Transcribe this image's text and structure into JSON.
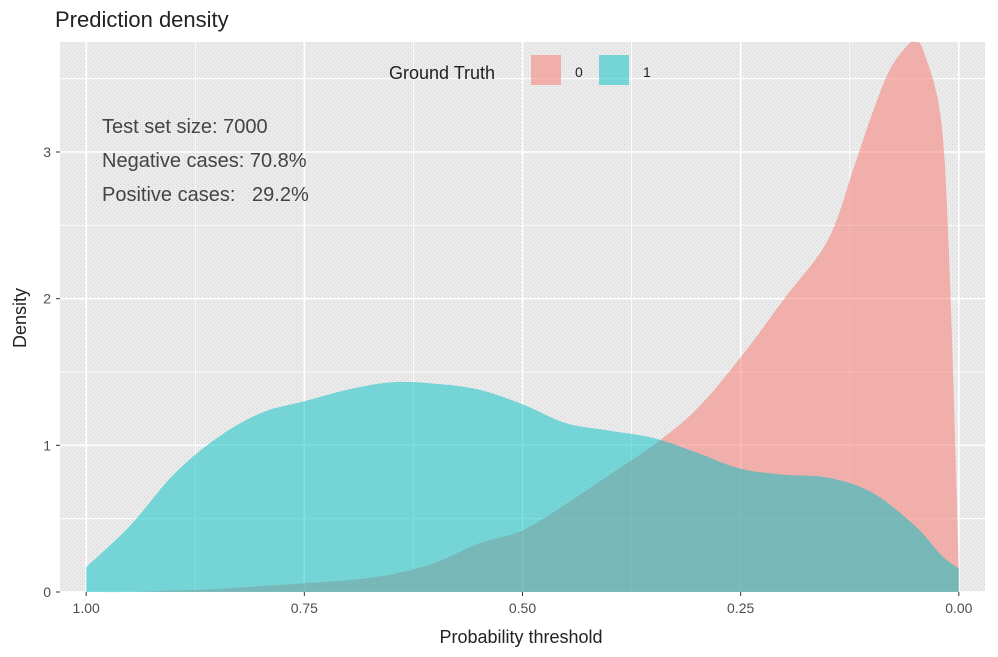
{
  "chart_data": {
    "type": "area",
    "title": "Prediction density",
    "xlabel": "Probability threshold",
    "ylabel": "Density",
    "x_reversed": true,
    "xlim": [
      1.03,
      -0.03
    ],
    "ylim": [
      0,
      3.75
    ],
    "xticks": [
      1.0,
      0.75,
      0.5,
      0.25,
      0.0
    ],
    "xtick_labels": [
      "1.00",
      "0.75",
      "0.50",
      "0.25",
      "0.00"
    ],
    "yticks": [
      0,
      1,
      2,
      3
    ],
    "ytick_labels": [
      "0",
      "1",
      "2",
      "3"
    ],
    "grid": true,
    "legend": {
      "title": "Ground Truth",
      "position": "top",
      "entries": [
        {
          "label": "0",
          "color": "#F8766D"
        },
        {
          "label": "1",
          "color": "#00BFC4"
        }
      ]
    },
    "annotations": [
      "Test set size: 7000",
      "Negative cases: 70.8%",
      "Positive cases:   29.2%"
    ],
    "series": [
      {
        "name": "0",
        "color": "#F8766D",
        "x": [
          1.0,
          0.95,
          0.9,
          0.85,
          0.8,
          0.75,
          0.7,
          0.65,
          0.6,
          0.55,
          0.5,
          0.45,
          0.4,
          0.35,
          0.3,
          0.25,
          0.2,
          0.15,
          0.12,
          0.1,
          0.08,
          0.06,
          0.05,
          0.04,
          0.02,
          0.01,
          0.0
        ],
        "y": [
          0.0,
          0.0,
          0.01,
          0.02,
          0.04,
          0.06,
          0.08,
          0.12,
          0.2,
          0.33,
          0.42,
          0.6,
          0.8,
          1.0,
          1.25,
          1.6,
          2.0,
          2.4,
          2.9,
          3.25,
          3.55,
          3.72,
          3.75,
          3.68,
          3.2,
          2.1,
          0.15
        ]
      },
      {
        "name": "1",
        "color": "#00BFC4",
        "x": [
          1.0,
          0.95,
          0.9,
          0.85,
          0.8,
          0.75,
          0.7,
          0.65,
          0.6,
          0.55,
          0.5,
          0.45,
          0.4,
          0.35,
          0.3,
          0.25,
          0.2,
          0.15,
          0.1,
          0.05,
          0.02,
          0.0
        ],
        "y": [
          0.17,
          0.45,
          0.8,
          1.05,
          1.22,
          1.3,
          1.38,
          1.43,
          1.42,
          1.38,
          1.28,
          1.15,
          1.1,
          1.05,
          0.95,
          0.84,
          0.8,
          0.78,
          0.68,
          0.45,
          0.25,
          0.16
        ]
      }
    ]
  }
}
